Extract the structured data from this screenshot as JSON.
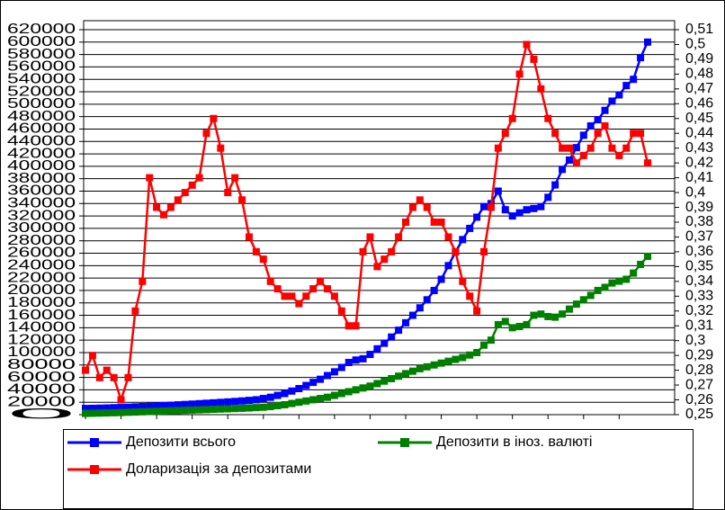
{
  "chart_data": {
    "type": "line",
    "ylim": [
      0,
      620000
    ],
    "yticks": [
      0,
      20000,
      40000,
      60000,
      80000,
      100000,
      120000,
      140000,
      160000,
      180000,
      200000,
      220000,
      240000,
      260000,
      280000,
      300000,
      320000,
      340000,
      360000,
      380000,
      400000,
      420000,
      440000,
      460000,
      480000,
      500000,
      520000,
      540000,
      560000,
      580000,
      600000,
      620000
    ],
    "y2lim": [
      0.25,
      0.51
    ],
    "y2ticks": [
      {
        "value": 0.25,
        "label": "0,25"
      },
      {
        "value": 0.26,
        "label": "0,26"
      },
      {
        "value": 0.27,
        "label": "0,27"
      },
      {
        "value": 0.28,
        "label": "0,28"
      },
      {
        "value": 0.29,
        "label": "0,29"
      },
      {
        "value": 0.3,
        "label": "0,3"
      },
      {
        "value": 0.31,
        "label": "0,31"
      },
      {
        "value": 0.32,
        "label": "0,32"
      },
      {
        "value": 0.33,
        "label": "0,33"
      },
      {
        "value": 0.34,
        "label": "0,34"
      },
      {
        "value": 0.35,
        "label": "0,35"
      },
      {
        "value": 0.36,
        "label": "0,36"
      },
      {
        "value": 0.37,
        "label": "0,37"
      },
      {
        "value": 0.38,
        "label": "0,38"
      },
      {
        "value": 0.39,
        "label": "0,39"
      },
      {
        "value": 0.4,
        "label": "0,4"
      },
      {
        "value": 0.41,
        "label": "0,41"
      },
      {
        "value": 0.42,
        "label": "0,42"
      },
      {
        "value": 0.43,
        "label": "0,43"
      },
      {
        "value": 0.44,
        "label": "0,44"
      },
      {
        "value": 0.45,
        "label": "0,45"
      },
      {
        "value": 0.46,
        "label": "0,46"
      },
      {
        "value": 0.47,
        "label": "0,47"
      },
      {
        "value": 0.48,
        "label": "0,48"
      },
      {
        "value": 0.49,
        "label": "0,49"
      },
      {
        "value": 0.5,
        "label": "0,5"
      },
      {
        "value": 0.51,
        "label": "0,51"
      }
    ],
    "grid": true,
    "legend": "bottom",
    "series": [
      {
        "name": "Депозити всього",
        "color": "#0000ff",
        "values": [
          10000,
          10200,
          10500,
          10800,
          11200,
          11600,
          12000,
          12500,
          13000,
          13500,
          14000,
          14600,
          15200,
          15800,
          16400,
          17000,
          17700,
          18400,
          19100,
          19800,
          20500,
          21300,
          22100,
          23000,
          24000,
          26000,
          28000,
          31000,
          34000,
          38000,
          42000,
          47000,
          52000,
          57000,
          63000,
          69000,
          76000,
          84000,
          88000,
          90000,
          97000,
          106000,
          115000,
          125000,
          136000,
          148000,
          160000,
          172000,
          185000,
          200000,
          218000,
          240000,
          262000,
          282000,
          300000,
          318000,
          335000,
          340000,
          360000,
          330000,
          320000,
          325000,
          330000,
          332000,
          335000,
          350000,
          370000,
          395000,
          410000,
          430000,
          450000,
          465000,
          475000,
          490000,
          505000,
          515000,
          530000,
          540000,
          575000,
          600000
        ]
      },
      {
        "name": "Депозити в іноз. валюті",
        "color": "#008000",
        "values": [
          2000,
          2200,
          2500,
          2800,
          3100,
          3400,
          3800,
          4200,
          4600,
          5000,
          5400,
          5800,
          6200,
          6600,
          7000,
          7400,
          7800,
          8200,
          8600,
          9000,
          9400,
          9800,
          10300,
          10800,
          11400,
          12000,
          13000,
          14500,
          16000,
          18000,
          20000,
          22000,
          24000,
          26000,
          28000,
          31000,
          34000,
          37000,
          40000,
          43000,
          46000,
          50000,
          54000,
          58000,
          62000,
          66000,
          70000,
          74000,
          77000,
          80000,
          83000,
          86000,
          89000,
          92000,
          96000,
          100000,
          112000,
          120000,
          145000,
          150000,
          140000,
          142000,
          145000,
          160000,
          162000,
          158000,
          157000,
          162000,
          170000,
          178000,
          185000,
          192000,
          200000,
          205000,
          212000,
          215000,
          218000,
          228000,
          242000,
          255000
        ]
      },
      {
        "name": "Доларизація за депозитами",
        "color": "#ff0000",
        "axis": "y2",
        "values": [
          0.28,
          0.29,
          0.275,
          0.28,
          0.275,
          0.26,
          0.275,
          0.32,
          0.34,
          0.41,
          0.39,
          0.385,
          0.39,
          0.395,
          0.4,
          0.405,
          0.41,
          0.44,
          0.45,
          0.43,
          0.4,
          0.41,
          0.395,
          0.37,
          0.36,
          0.355,
          0.34,
          0.335,
          0.33,
          0.33,
          0.325,
          0.33,
          0.335,
          0.34,
          0.335,
          0.33,
          0.32,
          0.31,
          0.31,
          0.36,
          0.37,
          0.35,
          0.355,
          0.36,
          0.37,
          0.38,
          0.39,
          0.395,
          0.39,
          0.38,
          0.38,
          0.37,
          0.36,
          0.34,
          0.33,
          0.32,
          0.36,
          0.39,
          0.43,
          0.44,
          0.45,
          0.48,
          0.5,
          0.49,
          0.47,
          0.45,
          0.44,
          0.43,
          0.43,
          0.42,
          0.425,
          0.43,
          0.44,
          0.445,
          0.43,
          0.425,
          0.43,
          0.44,
          0.44,
          0.42
        ]
      }
    ]
  }
}
